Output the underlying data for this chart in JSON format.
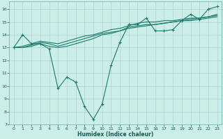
{
  "title": "",
  "xlabel": "Humidex (Indice chaleur)",
  "bg_color": "#cceee8",
  "line_color": "#1a7a6e",
  "grid_color": "#aad4ce",
  "xlim": [
    -0.5,
    23.5
  ],
  "ylim": [
    7,
    16.6
  ],
  "yticks": [
    7,
    8,
    9,
    10,
    11,
    12,
    13,
    14,
    15,
    16
  ],
  "xticks": [
    0,
    1,
    2,
    3,
    4,
    5,
    6,
    7,
    8,
    9,
    10,
    11,
    12,
    13,
    14,
    15,
    16,
    17,
    18,
    19,
    20,
    21,
    22,
    23
  ],
  "series": [
    [
      13.0,
      14.0,
      13.3,
      13.3,
      12.9,
      9.8,
      10.7,
      10.3,
      8.4,
      7.4,
      8.6,
      11.6,
      13.4,
      14.8,
      14.8,
      15.3,
      14.3,
      14.3,
      14.4,
      15.1,
      15.6,
      15.2,
      16.0,
      16.2
    ],
    [
      13.0,
      13.1,
      13.3,
      13.5,
      13.4,
      13.3,
      13.5,
      13.7,
      13.9,
      14.0,
      14.2,
      14.4,
      14.5,
      14.7,
      14.9,
      15.0,
      15.0,
      15.1,
      15.1,
      15.2,
      15.3,
      15.3,
      15.4,
      15.6
    ],
    [
      13.0,
      13.0,
      13.2,
      13.4,
      13.3,
      13.1,
      13.3,
      13.5,
      13.7,
      13.9,
      14.1,
      14.2,
      14.3,
      14.5,
      14.6,
      14.7,
      14.8,
      14.9,
      15.0,
      15.1,
      15.2,
      15.3,
      15.4,
      15.5
    ],
    [
      13.0,
      13.0,
      13.1,
      13.3,
      13.1,
      13.0,
      13.1,
      13.3,
      13.5,
      13.7,
      14.0,
      14.1,
      14.3,
      14.6,
      14.7,
      14.8,
      14.8,
      14.9,
      15.0,
      15.1,
      15.1,
      15.2,
      15.3,
      15.4
    ]
  ]
}
